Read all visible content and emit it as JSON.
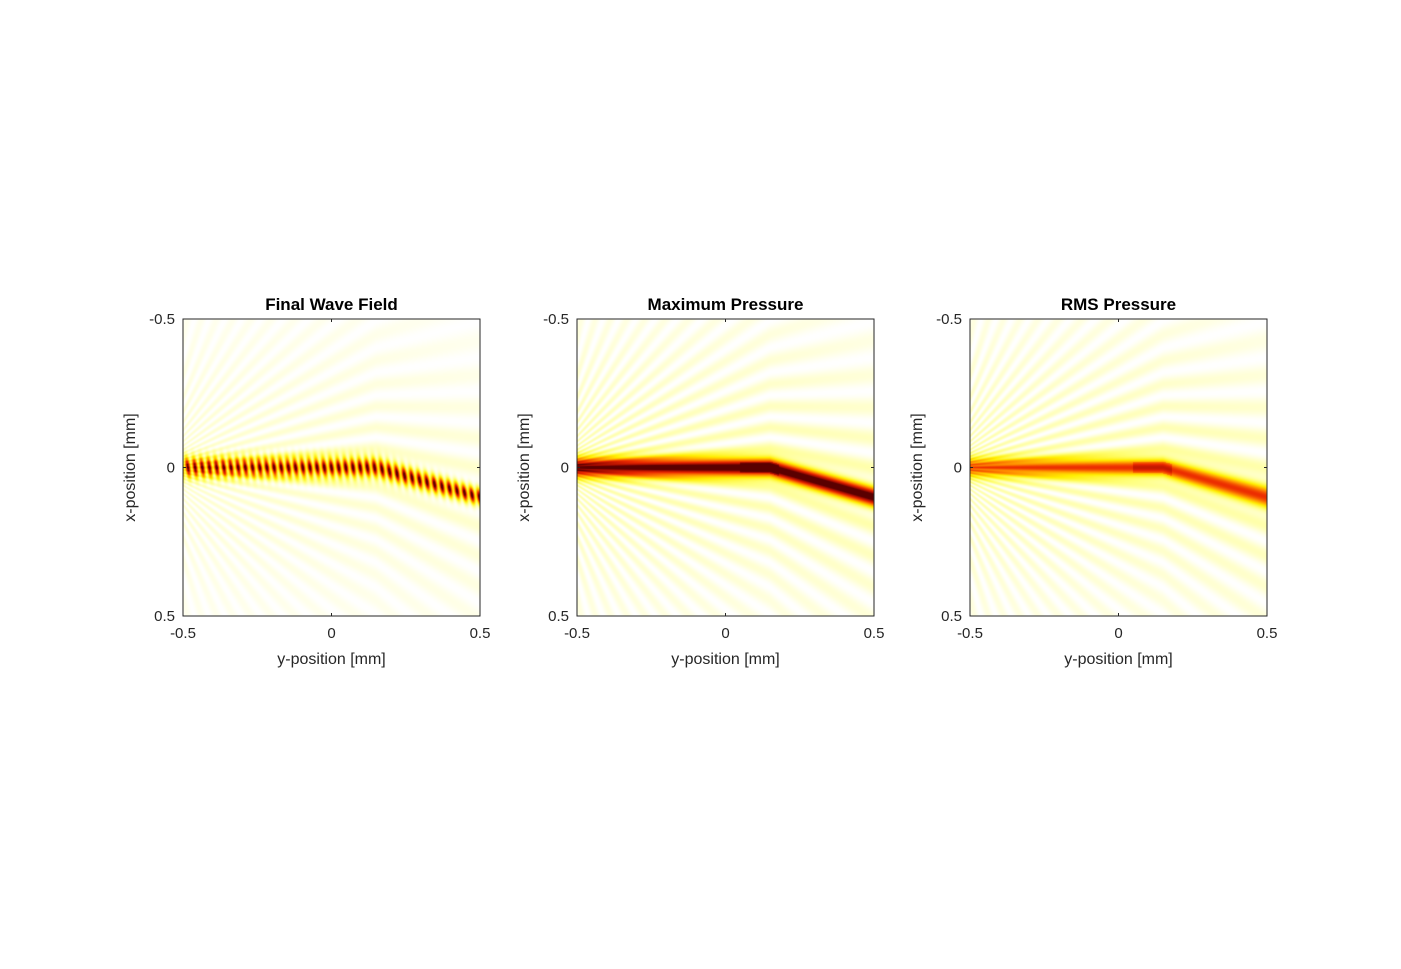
{
  "chart_data": [
    {
      "type": "heatmap",
      "title": "Final Wave Field",
      "xlabel": "y-position [mm]",
      "ylabel": "x-position [mm]",
      "xlim": [
        -0.5,
        0.5
      ],
      "ylim": [
        -0.5,
        0.5
      ],
      "y_reversed": true,
      "xticks": [
        -0.5,
        0,
        0.5
      ],
      "xtick_labels": [
        "-0.5",
        "0",
        "0.5"
      ],
      "yticks": [
        -0.5,
        0,
        0.5
      ],
      "ytick_labels": [
        "-0.5",
        "0",
        "0.5"
      ],
      "colormap": "hot",
      "field": "oscillating",
      "beam": {
        "y_start": -0.5,
        "x_start": 0.0,
        "width_start": 0.05,
        "y_bend": 0.15,
        "x_bend": 0.0,
        "y_end": 0.5,
        "x_end": 0.1,
        "width_end": 0.04,
        "peak_intensity": 1.0
      }
    },
    {
      "type": "heatmap",
      "title": "Maximum Pressure",
      "xlabel": "y-position [mm]",
      "ylabel": "x-position [mm]",
      "xlim": [
        -0.5,
        0.5
      ],
      "ylim": [
        -0.5,
        0.5
      ],
      "y_reversed": true,
      "xticks": [
        -0.5,
        0,
        0.5
      ],
      "xtick_labels": [
        "-0.5",
        "0",
        "0.5"
      ],
      "yticks": [
        -0.5,
        0,
        0.5
      ],
      "ytick_labels": [
        "-0.5",
        "0",
        "0.5"
      ],
      "colormap": "hot",
      "field": "envelope",
      "beam": {
        "y_start": -0.5,
        "x_start": 0.0,
        "width_start": 0.05,
        "y_bend": 0.15,
        "x_bend": 0.0,
        "y_end": 0.5,
        "x_end": 0.1,
        "width_end": 0.05,
        "peak_intensity": 0.95
      }
    },
    {
      "type": "heatmap",
      "title": "RMS Pressure",
      "xlabel": "y-position [mm]",
      "ylabel": "x-position [mm]",
      "xlim": [
        -0.5,
        0.5
      ],
      "ylim": [
        -0.5,
        0.5
      ],
      "y_reversed": true,
      "xticks": [
        -0.5,
        0,
        0.5
      ],
      "xtick_labels": [
        "-0.5",
        "0",
        "0.5"
      ],
      "yticks": [
        -0.5,
        0,
        0.5
      ],
      "ytick_labels": [
        "-0.5",
        "0",
        "0.5"
      ],
      "colormap": "hot",
      "field": "envelope",
      "beam": {
        "y_start": -0.5,
        "x_start": 0.0,
        "width_start": 0.05,
        "y_bend": 0.15,
        "x_bend": 0.0,
        "y_end": 0.5,
        "x_end": 0.1,
        "width_end": 0.06,
        "peak_intensity": 0.6
      }
    }
  ]
}
